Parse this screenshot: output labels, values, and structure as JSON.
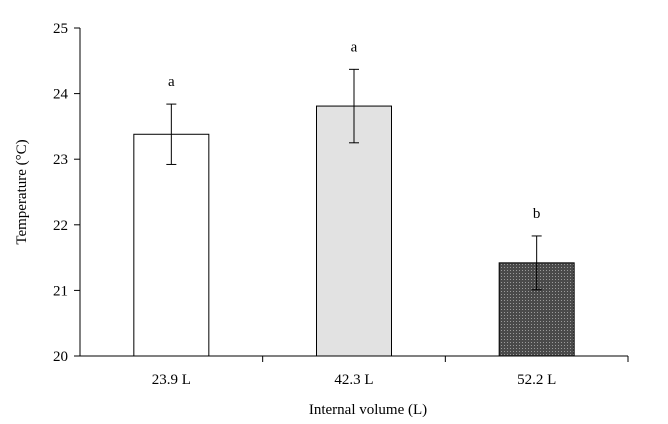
{
  "chart_data": {
    "type": "bar",
    "title": "",
    "xlabel": "Internal volume (L)",
    "ylabel": "Temperature (°C)",
    "ylim": [
      20,
      25
    ],
    "yticks": [
      20,
      21,
      22,
      23,
      24,
      25
    ],
    "grid": false,
    "categories": [
      "23.9 L",
      "42.3 L",
      "52.2 L"
    ],
    "values": [
      23.38,
      23.81,
      21.42
    ],
    "errors": [
      0.46,
      0.56,
      0.41
    ],
    "significance": [
      "a",
      "a",
      "b"
    ],
    "bar_fills": [
      "#ffffff",
      "#e2e2e2",
      "#555555"
    ]
  }
}
